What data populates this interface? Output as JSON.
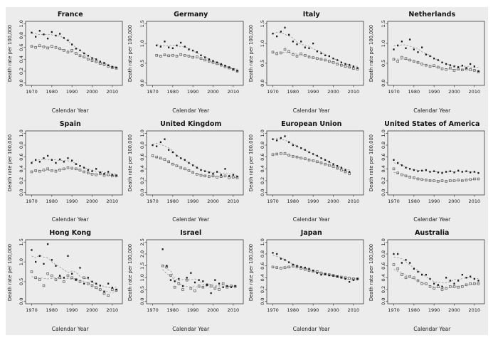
{
  "figure": {
    "xlabel": "Calendar Year",
    "ylabel": "Death rate per 100,000",
    "x_ticks": [
      1970,
      1980,
      1990,
      2000,
      2010
    ],
    "x_domain": [
      1967,
      2015
    ],
    "background": "#ececec",
    "box_color": "#3c3c3c",
    "text_color": "#1a1a1a",
    "series_a_color": "#1a1a1a",
    "series_b_color": "#555555",
    "trend_color": "#8a8a8a"
  },
  "chart_data": [
    {
      "type": "scatter",
      "title": "France",
      "ylim": [
        0,
        1.0
      ],
      "yticks": [
        0.0,
        0.2,
        0.4,
        0.6,
        0.8,
        1.0
      ],
      "years": [
        1970,
        1972,
        1974,
        1976,
        1978,
        1980,
        1982,
        1984,
        1986,
        1988,
        1990,
        1992,
        1994,
        1996,
        1998,
        2000,
        2002,
        2004,
        2006,
        2008,
        2010,
        2012
      ],
      "series": [
        {
          "name": "filled-marker-series",
          "marker": "filled-square",
          "values": [
            0.85,
            0.78,
            0.88,
            0.82,
            0.75,
            0.86,
            0.8,
            0.83,
            0.76,
            0.72,
            0.65,
            0.58,
            0.55,
            0.5,
            0.46,
            0.42,
            0.4,
            0.36,
            0.34,
            0.3,
            0.27,
            0.26
          ]
        },
        {
          "name": "open-marker-series",
          "marker": "open-square",
          "values": [
            0.62,
            0.6,
            0.63,
            0.61,
            0.59,
            0.62,
            0.6,
            0.58,
            0.55,
            0.52,
            0.55,
            0.5,
            0.46,
            0.44,
            0.4,
            0.38,
            0.36,
            0.33,
            0.31,
            0.28,
            0.26,
            0.25
          ]
        }
      ]
    },
    {
      "type": "scatter",
      "title": "Germany",
      "ylim": [
        0,
        1.5
      ],
      "yticks": [
        0.0,
        0.5,
        1.0,
        1.5
      ],
      "years": [
        1972,
        1974,
        1976,
        1978,
        1980,
        1982,
        1984,
        1986,
        1988,
        1990,
        1992,
        1994,
        1996,
        1998,
        2000,
        2002,
        2004,
        2006,
        2008,
        2010,
        2012
      ],
      "series": [
        {
          "name": "filled-marker-series",
          "marker": "filled-square",
          "values": [
            0.95,
            0.92,
            1.05,
            0.9,
            0.88,
            0.95,
            1.02,
            0.92,
            0.85,
            0.82,
            0.78,
            0.7,
            0.65,
            0.6,
            0.56,
            0.52,
            0.48,
            0.44,
            0.4,
            0.35,
            0.31
          ]
        },
        {
          "name": "open-marker-series",
          "marker": "open-square",
          "values": [
            0.7,
            0.68,
            0.71,
            0.69,
            0.7,
            0.68,
            0.72,
            0.7,
            0.68,
            0.65,
            0.66,
            0.62,
            0.58,
            0.55,
            0.52,
            0.49,
            0.45,
            0.41,
            0.38,
            0.34,
            0.3
          ]
        }
      ]
    },
    {
      "type": "scatter",
      "title": "Italy",
      "ylim": [
        0,
        1.5
      ],
      "yticks": [
        0.0,
        0.5,
        1.0,
        1.5
      ],
      "years": [
        1970,
        1972,
        1974,
        1976,
        1978,
        1980,
        1982,
        1984,
        1986,
        1988,
        1990,
        1992,
        1994,
        1996,
        1998,
        2000,
        2002,
        2004,
        2006,
        2008,
        2010,
        2012
      ],
      "series": [
        {
          "name": "filled-marker-series",
          "marker": "filled-square",
          "values": [
            1.25,
            1.18,
            1.3,
            1.4,
            1.22,
            1.05,
            0.98,
            1.05,
            0.9,
            0.88,
            1.0,
            0.8,
            0.75,
            0.7,
            0.68,
            0.62,
            0.58,
            0.52,
            0.48,
            0.46,
            0.42,
            0.38
          ]
        },
        {
          "name": "open-marker-series",
          "marker": "open-square",
          "values": [
            0.78,
            0.74,
            0.76,
            0.85,
            0.8,
            0.72,
            0.68,
            0.74,
            0.7,
            0.66,
            0.64,
            0.62,
            0.6,
            0.58,
            0.55,
            0.52,
            0.48,
            0.45,
            0.42,
            0.4,
            0.37,
            0.35
          ]
        }
      ]
    },
    {
      "type": "scatter",
      "title": "Netherlands",
      "ylim": [
        0,
        1.5
      ],
      "yticks": [
        0.0,
        0.5,
        1.0,
        1.5
      ],
      "years": [
        1970,
        1972,
        1974,
        1976,
        1978,
        1980,
        1982,
        1984,
        1986,
        1988,
        1990,
        1992,
        1994,
        1996,
        1998,
        2000,
        2002,
        2004,
        2006,
        2008,
        2010,
        2012
      ],
      "series": [
        {
          "name": "filled-marker-series",
          "marker": "filled-square",
          "values": [
            0.85,
            0.95,
            1.05,
            0.88,
            1.1,
            0.85,
            0.78,
            0.9,
            0.72,
            0.68,
            0.62,
            0.58,
            0.52,
            0.48,
            0.45,
            0.42,
            0.4,
            0.44,
            0.38,
            0.48,
            0.42,
            0.3
          ]
        },
        {
          "name": "open-marker-series",
          "marker": "open-square",
          "values": [
            0.6,
            0.55,
            0.65,
            0.62,
            0.58,
            0.55,
            0.52,
            0.48,
            0.45,
            0.42,
            0.44,
            0.4,
            0.36,
            0.34,
            0.38,
            0.32,
            0.35,
            0.33,
            0.36,
            0.34,
            0.32,
            0.28
          ]
        }
      ]
    },
    {
      "type": "scatter",
      "title": "Spain",
      "ylim": [
        0,
        1.0
      ],
      "yticks": [
        0.0,
        0.2,
        0.4,
        0.6,
        0.8,
        1.0
      ],
      "years": [
        1970,
        1972,
        1974,
        1976,
        1978,
        1980,
        1982,
        1984,
        1986,
        1988,
        1990,
        1992,
        1994,
        1996,
        1998,
        2000,
        2002,
        2004,
        2006,
        2008,
        2010,
        2012
      ],
      "series": [
        {
          "name": "filled-marker-series",
          "marker": "filled-square",
          "values": [
            0.5,
            0.55,
            0.52,
            0.58,
            0.62,
            0.55,
            0.5,
            0.56,
            0.52,
            0.58,
            0.54,
            0.48,
            0.45,
            0.42,
            0.38,
            0.36,
            0.4,
            0.34,
            0.32,
            0.35,
            0.3,
            0.29
          ]
        },
        {
          "name": "open-marker-series",
          "marker": "open-square",
          "values": [
            0.35,
            0.37,
            0.36,
            0.38,
            0.4,
            0.37,
            0.36,
            0.38,
            0.4,
            0.42,
            0.41,
            0.4,
            0.38,
            0.35,
            0.33,
            0.31,
            0.3,
            0.32,
            0.29,
            0.3,
            0.28,
            0.28
          ]
        }
      ]
    },
    {
      "type": "scatter",
      "title": "United Kingdom",
      "ylim": [
        0,
        1.0
      ],
      "yticks": [
        0.0,
        0.2,
        0.4,
        0.6,
        0.8,
        1.0
      ],
      "years": [
        1970,
        1972,
        1974,
        1976,
        1978,
        1980,
        1982,
        1984,
        1986,
        1988,
        1990,
        1992,
        1994,
        1996,
        1998,
        2000,
        2002,
        2004,
        2006,
        2008,
        2010,
        2012
      ],
      "series": [
        {
          "name": "filled-marker-series",
          "marker": "filled-square",
          "values": [
            0.8,
            0.78,
            0.85,
            0.9,
            0.72,
            0.68,
            0.62,
            0.58,
            0.55,
            0.5,
            0.46,
            0.42,
            0.38,
            0.36,
            0.34,
            0.32,
            0.35,
            0.3,
            0.4,
            0.28,
            0.3,
            0.27
          ]
        },
        {
          "name": "open-marker-series",
          "marker": "open-square",
          "values": [
            0.62,
            0.6,
            0.58,
            0.56,
            0.52,
            0.48,
            0.45,
            0.42,
            0.4,
            0.37,
            0.34,
            0.31,
            0.29,
            0.28,
            0.27,
            0.28,
            0.26,
            0.27,
            0.28,
            0.25,
            0.26,
            0.25
          ]
        }
      ]
    },
    {
      "type": "scatter",
      "title": "European Union",
      "ylim": [
        0,
        1.0
      ],
      "yticks": [
        0.0,
        0.2,
        0.4,
        0.6,
        0.8,
        1.0
      ],
      "years": [
        1970,
        1972,
        1974,
        1976,
        1978,
        1980,
        1982,
        1984,
        1986,
        1988,
        1990,
        1992,
        1994,
        1996,
        1998,
        2000,
        2002,
        2004,
        2006,
        2008
      ],
      "series": [
        {
          "name": "filled-marker-series",
          "marker": "filled-square",
          "values": [
            0.9,
            0.88,
            0.92,
            0.95,
            0.85,
            0.8,
            0.78,
            0.75,
            0.72,
            0.68,
            0.65,
            0.62,
            0.58,
            0.55,
            0.52,
            0.48,
            0.45,
            0.42,
            0.38,
            0.35
          ]
        },
        {
          "name": "open-marker-series",
          "marker": "open-square",
          "values": [
            0.64,
            0.65,
            0.66,
            0.66,
            0.63,
            0.61,
            0.6,
            0.58,
            0.57,
            0.55,
            0.54,
            0.52,
            0.5,
            0.48,
            0.46,
            0.44,
            0.41,
            0.38,
            0.35,
            0.32
          ]
        }
      ]
    },
    {
      "type": "scatter",
      "title": "United States of America",
      "ylim": [
        0,
        1.0
      ],
      "yticks": [
        0.0,
        0.2,
        0.4,
        0.6,
        0.8,
        1.0
      ],
      "years": [
        1970,
        1972,
        1974,
        1976,
        1978,
        1980,
        1982,
        1984,
        1986,
        1988,
        1990,
        1992,
        1994,
        1996,
        1998,
        2000,
        2002,
        2004,
        2006,
        2008,
        2010,
        2012
      ],
      "series": [
        {
          "name": "filled-marker-series",
          "marker": "filled-square",
          "values": [
            0.55,
            0.5,
            0.46,
            0.42,
            0.4,
            0.38,
            0.36,
            0.37,
            0.38,
            0.35,
            0.36,
            0.34,
            0.33,
            0.35,
            0.36,
            0.34,
            0.37,
            0.35,
            0.36,
            0.34,
            0.35,
            0.33
          ]
        },
        {
          "name": "open-marker-series",
          "marker": "open-square",
          "values": [
            0.4,
            0.33,
            0.3,
            0.28,
            0.26,
            0.25,
            0.23,
            0.22,
            0.21,
            0.2,
            0.2,
            0.19,
            0.2,
            0.19,
            0.2,
            0.2,
            0.21,
            0.2,
            0.21,
            0.22,
            0.23,
            0.23
          ]
        }
      ]
    },
    {
      "type": "scatter",
      "title": "Hong Kong",
      "ylim": [
        0,
        1.5
      ],
      "yticks": [
        0.0,
        0.5,
        1.0,
        1.5
      ],
      "years": [
        1970,
        1972,
        1974,
        1976,
        1978,
        1980,
        1982,
        1984,
        1986,
        1988,
        1990,
        1992,
        1994,
        1996,
        1998,
        2000,
        2002,
        2004,
        2006,
        2008,
        2010,
        2012
      ],
      "series": [
        {
          "name": "filled-marker-series",
          "marker": "filled-square",
          "values": [
            1.3,
            1.0,
            1.15,
            0.95,
            1.45,
            1.05,
            0.9,
            0.65,
            0.6,
            1.15,
            0.7,
            0.55,
            0.85,
            0.45,
            0.6,
            0.5,
            0.45,
            0.4,
            0.25,
            0.45,
            0.35,
            0.3
          ]
        },
        {
          "name": "open-marker-series",
          "marker": "open-square",
          "values": [
            0.75,
            0.6,
            0.55,
            0.4,
            0.7,
            0.65,
            0.55,
            0.6,
            0.5,
            0.65,
            0.6,
            0.55,
            0.5,
            0.6,
            0.45,
            0.4,
            0.35,
            0.3,
            0.2,
            0.15,
            0.3,
            0.28
          ]
        }
      ]
    },
    {
      "type": "scatter",
      "title": "Israel",
      "ylim": [
        0,
        2.5
      ],
      "yticks": [
        0.0,
        0.5,
        1.0,
        1.5,
        2.0,
        2.5
      ],
      "years": [
        1975,
        1977,
        1979,
        1981,
        1983,
        1985,
        1987,
        1989,
        1991,
        1993,
        1995,
        1997,
        1999,
        2001,
        2003,
        2005,
        2007,
        2009,
        2011
      ],
      "series": [
        {
          "name": "filled-marker-series",
          "marker": "filled-square",
          "values": [
            2.2,
            1.5,
            0.9,
            0.85,
            0.95,
            0.65,
            1.0,
            1.2,
            0.8,
            0.9,
            0.85,
            0.7,
            0.35,
            0.9,
            0.75,
            0.6,
            0.65,
            0.6,
            0.65
          ]
        },
        {
          "name": "open-marker-series",
          "marker": "open-square",
          "values": [
            1.5,
            1.45,
            1.1,
            0.6,
            0.75,
            0.5,
            0.9,
            0.55,
            0.45,
            0.65,
            0.6,
            0.7,
            0.65,
            0.55,
            0.5,
            0.75,
            0.6,
            0.65,
            0.63
          ]
        }
      ]
    },
    {
      "type": "scatter",
      "title": "Japan",
      "ylim": [
        0,
        1.0
      ],
      "yticks": [
        0.0,
        0.2,
        0.4,
        0.6,
        0.8,
        1.0
      ],
      "years": [
        1970,
        1972,
        1974,
        1976,
        1978,
        1980,
        1982,
        1984,
        1986,
        1988,
        1990,
        1992,
        1994,
        1996,
        1998,
        2000,
        2002,
        2004,
        2006,
        2008,
        2010,
        2012
      ],
      "series": [
        {
          "name": "filled-marker-series",
          "marker": "filled-square",
          "values": [
            0.82,
            0.8,
            0.72,
            0.7,
            0.66,
            0.62,
            0.6,
            0.58,
            0.57,
            0.55,
            0.52,
            0.48,
            0.45,
            0.46,
            0.44,
            0.43,
            0.42,
            0.4,
            0.38,
            0.33,
            0.36,
            0.38
          ]
        },
        {
          "name": "open-marker-series",
          "marker": "open-square",
          "values": [
            0.58,
            0.57,
            0.56,
            0.57,
            0.58,
            0.6,
            0.58,
            0.56,
            0.54,
            0.52,
            0.51,
            0.5,
            0.48,
            0.46,
            0.45,
            0.44,
            0.42,
            0.41,
            0.4,
            0.39,
            0.38,
            0.38
          ]
        }
      ]
    },
    {
      "type": "scatter",
      "title": "Australia",
      "ylim": [
        0,
        1.0
      ],
      "yticks": [
        0.0,
        0.2,
        0.4,
        0.6,
        0.8,
        1.0
      ],
      "years": [
        1970,
        1972,
        1974,
        1976,
        1978,
        1980,
        1982,
        1984,
        1986,
        1988,
        1990,
        1992,
        1994,
        1996,
        1998,
        2000,
        2002,
        2004,
        2006,
        2008,
        2010,
        2012
      ],
      "series": [
        {
          "name": "filled-marker-series",
          "marker": "filled-square",
          "values": [
            0.8,
            0.8,
            0.65,
            0.7,
            0.65,
            0.55,
            0.5,
            0.45,
            0.45,
            0.38,
            0.3,
            0.28,
            0.25,
            0.4,
            0.35,
            0.3,
            0.35,
            0.45,
            0.4,
            0.42,
            0.38,
            0.35
          ]
        },
        {
          "name": "open-marker-series",
          "marker": "open-square",
          "values": [
            0.62,
            0.55,
            0.45,
            0.4,
            0.42,
            0.4,
            0.35,
            0.3,
            0.3,
            0.25,
            0.22,
            0.25,
            0.2,
            0.22,
            0.25,
            0.25,
            0.24,
            0.25,
            0.28,
            0.3,
            0.3,
            0.3
          ]
        }
      ]
    }
  ]
}
